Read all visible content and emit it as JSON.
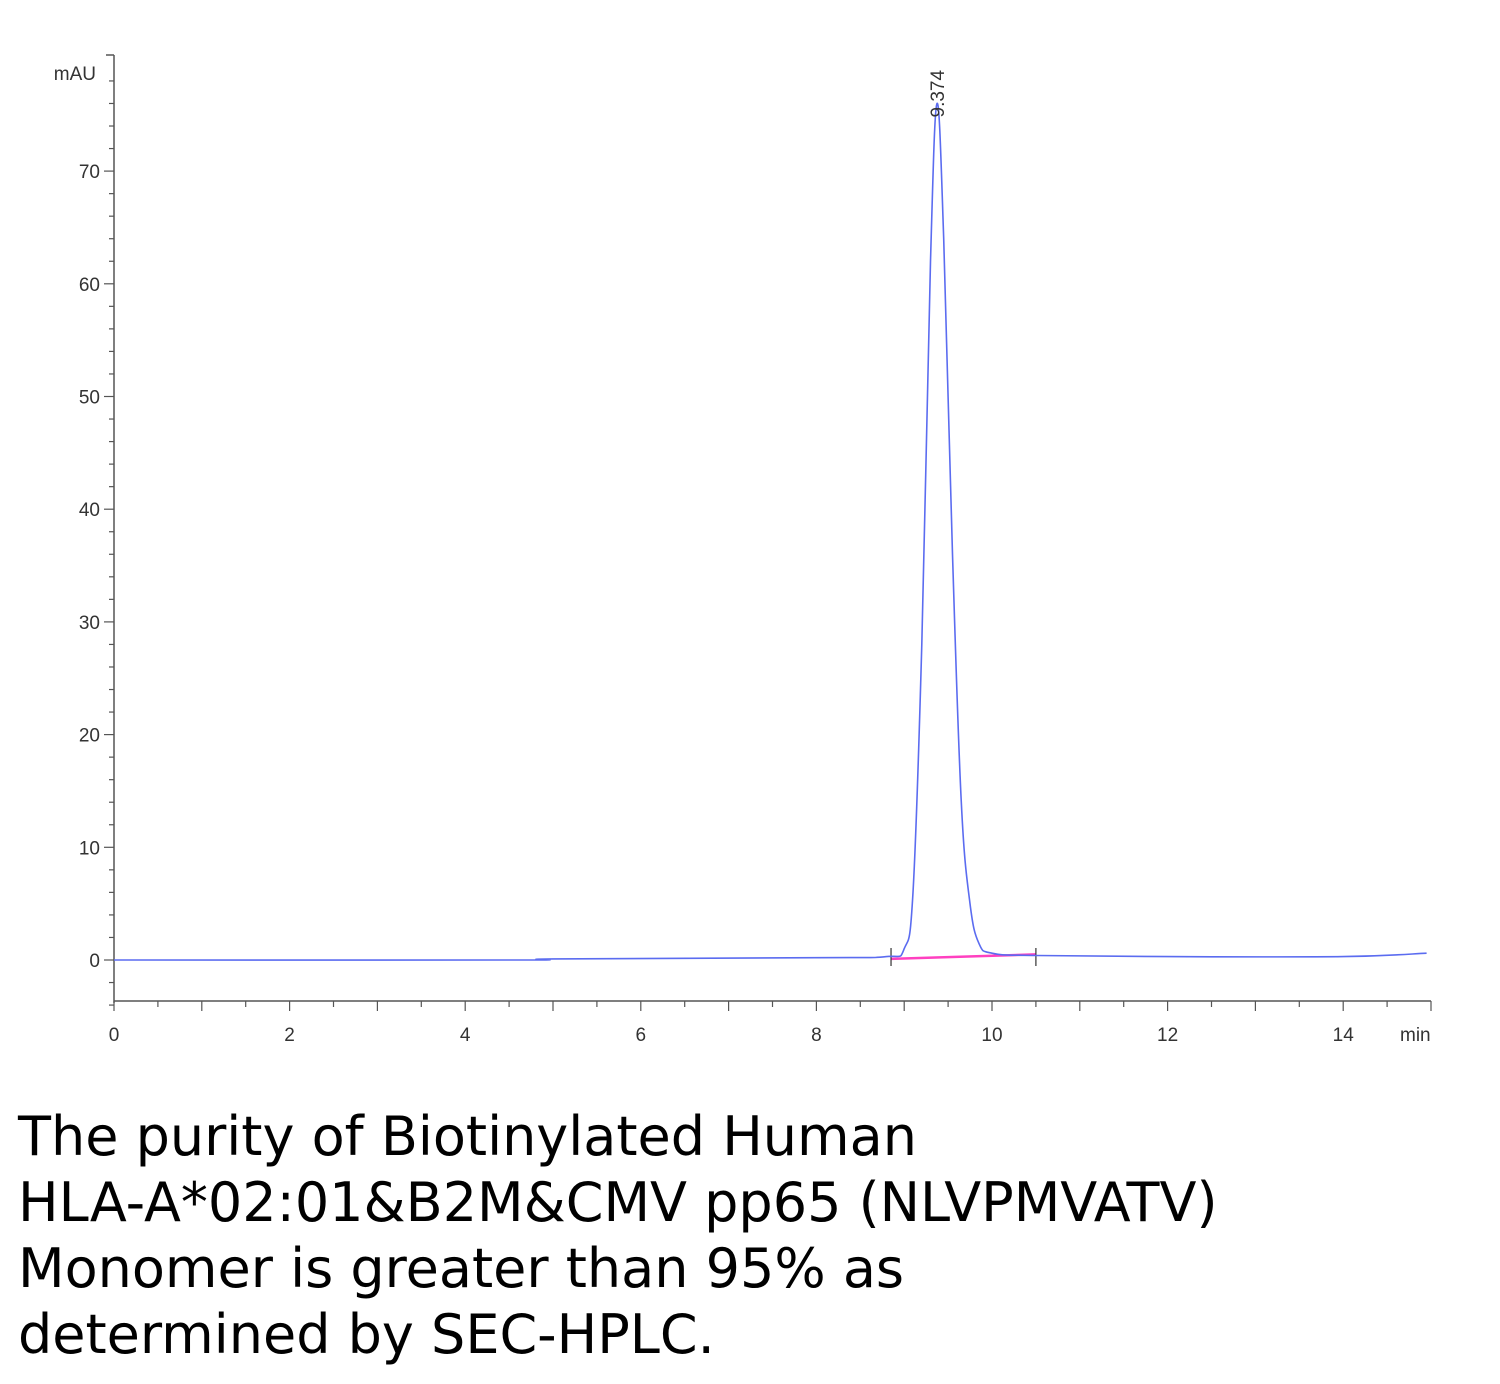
{
  "chart_data": {
    "type": "line",
    "ylabel": "mAU",
    "xlabel": "min",
    "xlim": [
      0,
      15
    ],
    "ylim": [
      -4,
      80
    ],
    "x_ticks": [
      "0",
      "2",
      "4",
      "6",
      "8",
      "10",
      "12",
      "14"
    ],
    "y_ticks": [
      "0",
      "10",
      "20",
      "30",
      "40",
      "50",
      "60",
      "70"
    ],
    "grid": false,
    "legend": "none",
    "series": [
      {
        "color": "#5b6cf0",
        "x": [
          0,
          4.6,
          5.0,
          8.0,
          8.8,
          9.0,
          9.1,
          9.2,
          9.3,
          9.374,
          9.45,
          9.55,
          9.65,
          9.75,
          9.85,
          10.0,
          10.5,
          12.0,
          14.0,
          14.95
        ],
        "y": [
          0,
          0,
          0.1,
          0.2,
          0.3,
          1.0,
          6.0,
          28.0,
          62.0,
          76.0,
          64.0,
          36.0,
          14.0,
          5.0,
          1.5,
          0.6,
          0.4,
          0.3,
          0.3,
          0.6
        ]
      }
    ],
    "baseline": {
      "color": "#ff40c0",
      "x": [
        8.85,
        10.5
      ],
      "y": [
        0.1,
        0.5
      ]
    },
    "peak_markers": [
      8.85,
      10.5
    ],
    "annotations": [
      {
        "x": 9.374,
        "y": 76.0,
        "text": "9.374"
      }
    ]
  },
  "caption": {
    "line1": "The purity of Biotinylated Human",
    "line2": "HLA-A*02:01&B2M&CMV pp65 (NLVPMVATV)",
    "line3": "Monomer is greater than 95% as",
    "line4": "determined by SEC-HPLC."
  }
}
